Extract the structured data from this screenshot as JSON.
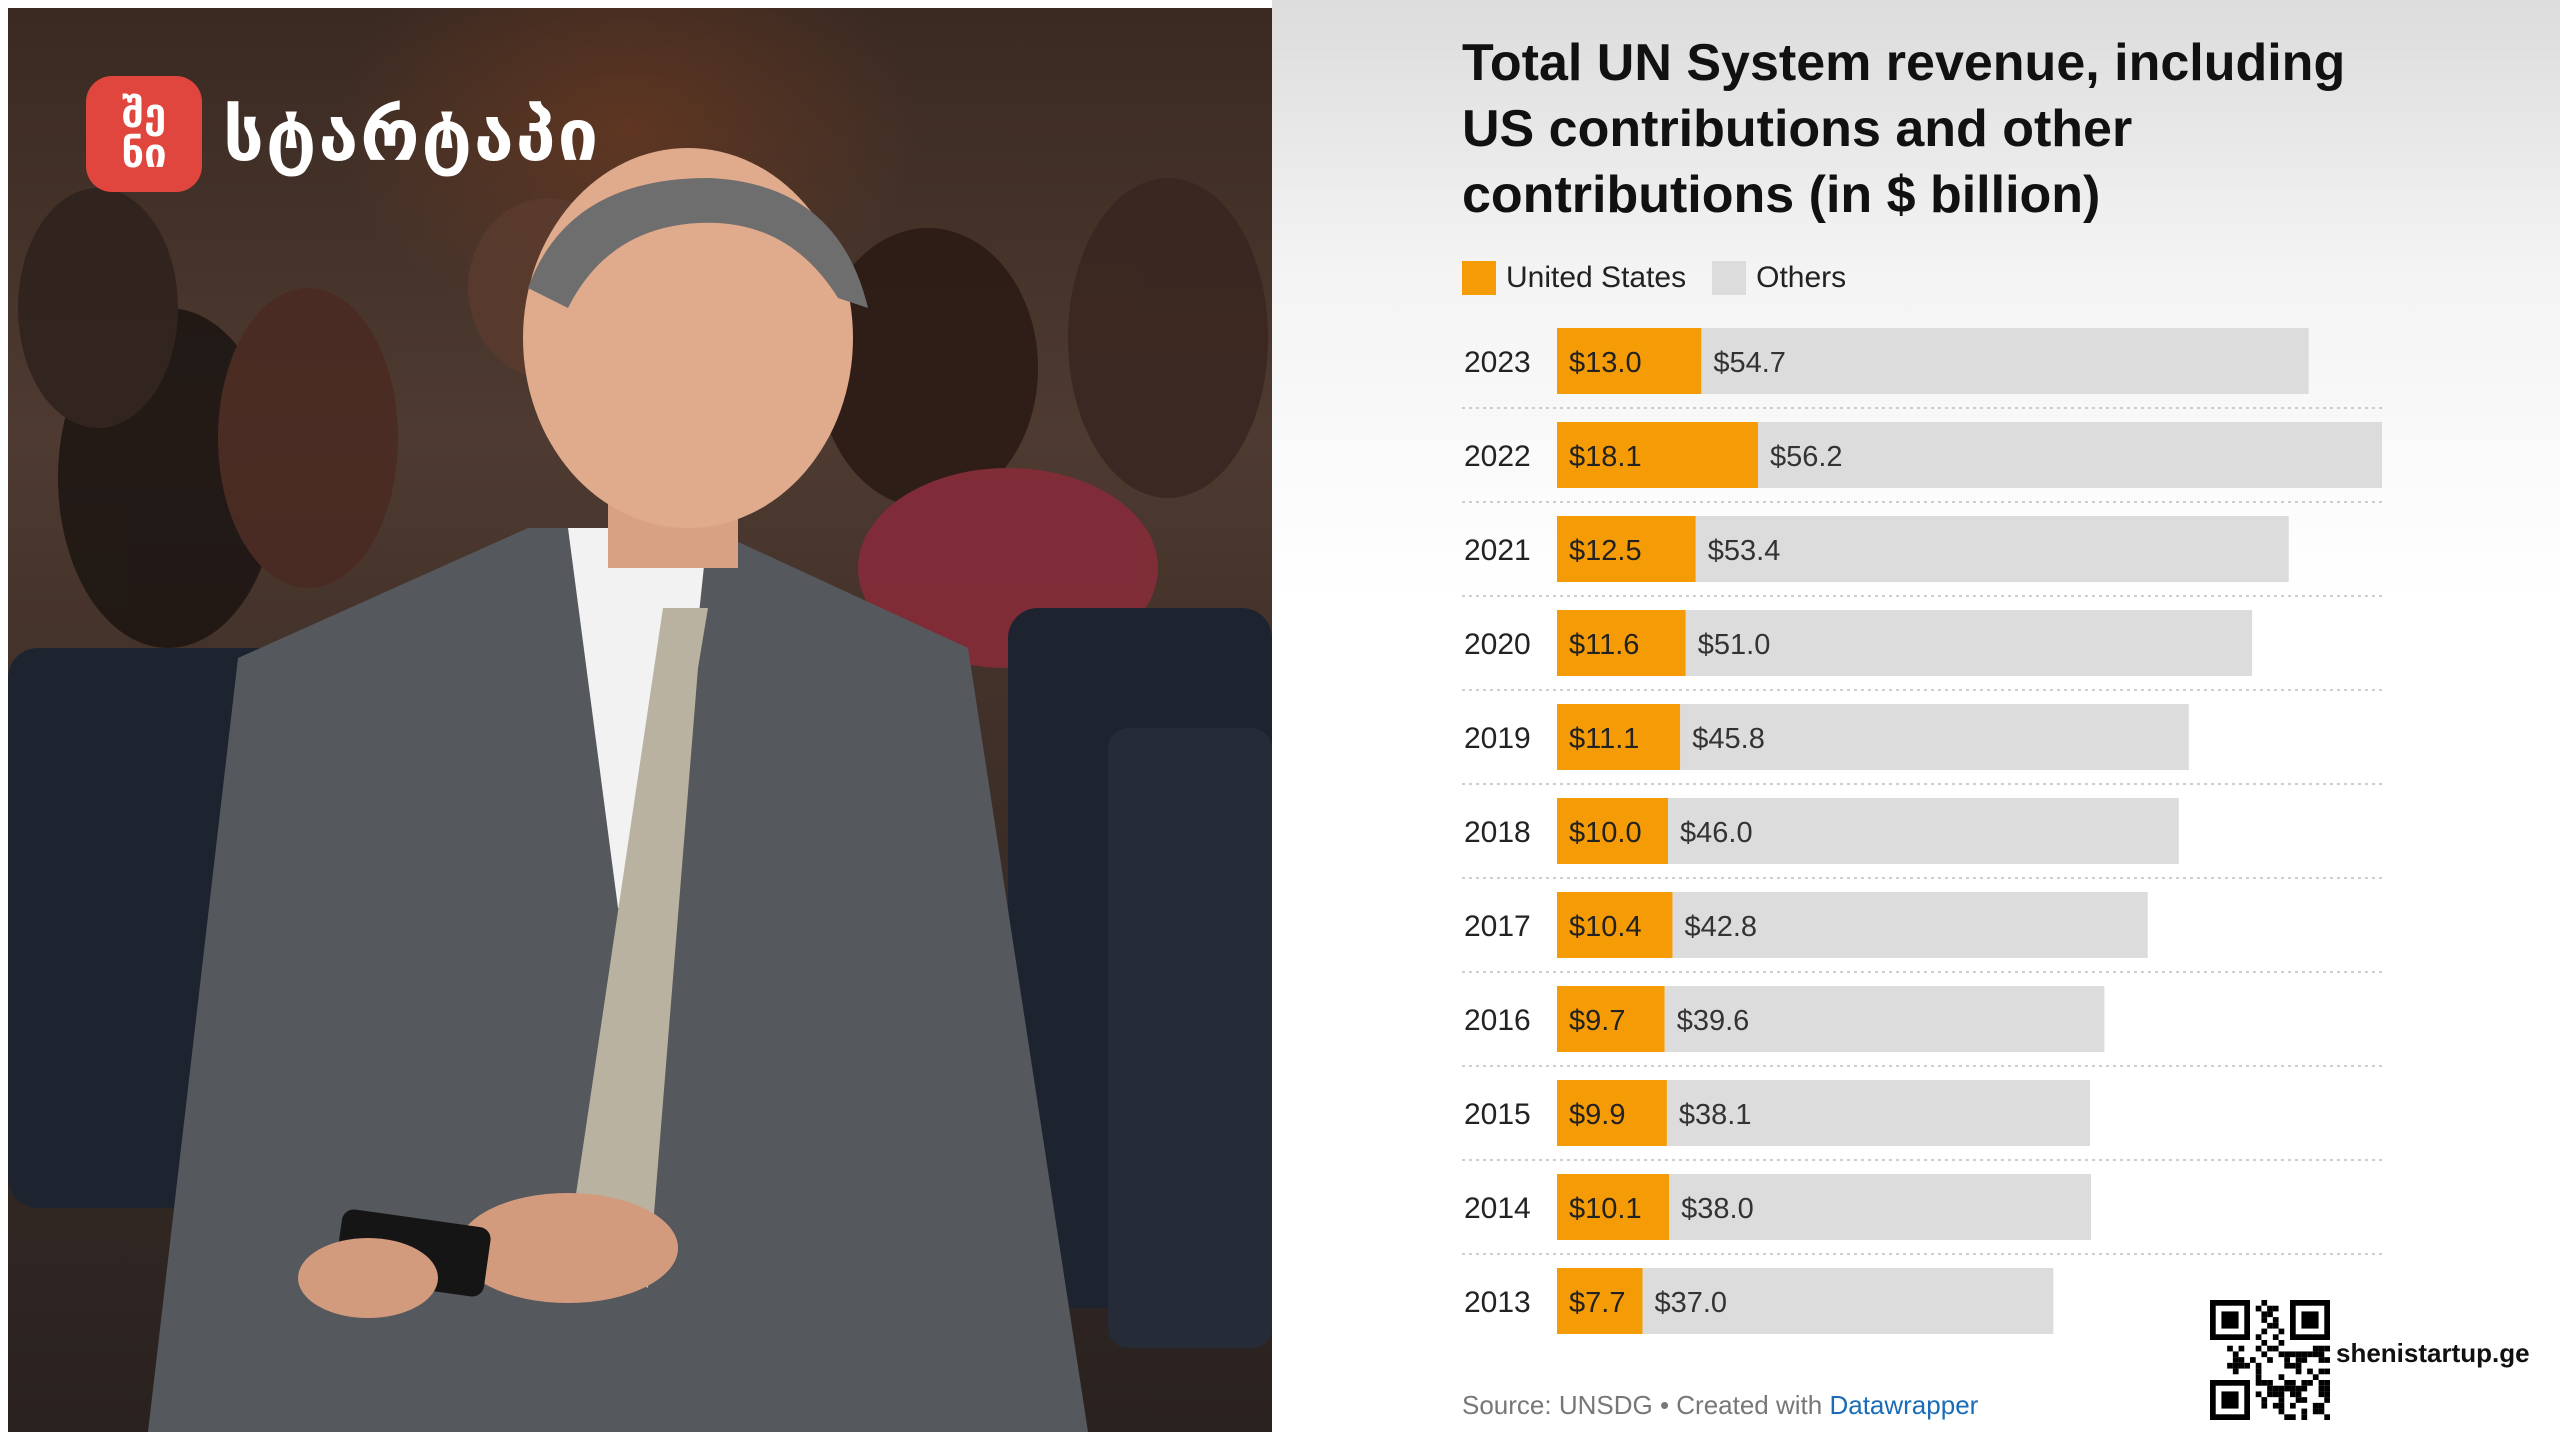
{
  "brand": {
    "logo_text_top": "შე",
    "logo_text_bottom": "ნი",
    "name": "სტარტაპი",
    "logo_color": "#e0463d"
  },
  "chart_data": {
    "type": "bar",
    "stacked": true,
    "orientation": "horizontal",
    "title": "Total UN System revenue, including US contributions and other contributions (in $ billion)",
    "categories": [
      "2023",
      "2022",
      "2021",
      "2020",
      "2019",
      "2018",
      "2017",
      "2016",
      "2015",
      "2014",
      "2013"
    ],
    "series": [
      {
        "name": "United States",
        "color": "#f59b06",
        "values": [
          13.0,
          18.1,
          12.5,
          11.6,
          11.1,
          10.0,
          10.4,
          9.7,
          9.9,
          10.1,
          7.7
        ],
        "labels": [
          "$13.0",
          "$18.1",
          "$12.5",
          "$11.6",
          "$11.1",
          "$10.0",
          "$10.4",
          "$9.7",
          "$9.9",
          "$10.1",
          "$7.7"
        ]
      },
      {
        "name": "Others",
        "color": "#dcdcdc",
        "values": [
          54.7,
          56.2,
          53.4,
          51.0,
          45.8,
          46.0,
          42.8,
          39.6,
          38.1,
          38.0,
          37.0
        ],
        "labels": [
          "$54.7",
          "$56.2",
          "$53.4",
          "$51.0",
          "$45.8",
          "$46.0",
          "$42.8",
          "$39.6",
          "$38.1",
          "$38.0",
          "$37.0"
        ]
      }
    ],
    "xlim": [
      0,
      74.3
    ],
    "legend_position": "top-left",
    "grid": false,
    "source_text": "Source: UNSDG • Created with ",
    "source_link": "Datawrapper"
  },
  "footer": {
    "site": "shenistartup.ge"
  },
  "icons": {
    "qr": "qr-code-icon"
  }
}
